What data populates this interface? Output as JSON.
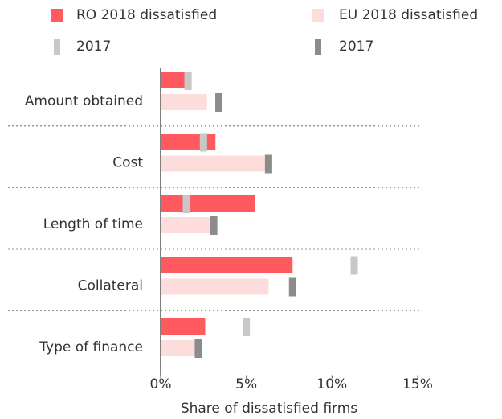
{
  "chart_data": {
    "type": "bar",
    "orientation": "horizontal",
    "x_label": "Share of dissatisfied firms",
    "categories": [
      "Amount obtained",
      "Cost",
      "Length of time",
      "Collateral",
      "Type of finance"
    ],
    "series": [
      {
        "name": "RO 2018 dissatisfied",
        "color": "#ff5a5f",
        "values": [
          1.4,
          3.2,
          5.5,
          7.7,
          2.6
        ]
      },
      {
        "name": "EU 2018 dissatisfied",
        "color": "#fddcdc",
        "values": [
          2.7,
          6.1,
          2.9,
          6.3,
          2.0
        ]
      },
      {
        "name": "2017",
        "color": "#c8c8c8",
        "values": [
          1.6,
          2.5,
          1.5,
          11.3,
          5.0
        ]
      },
      {
        "name": "2017",
        "color": "#8c8c8c",
        "values": [
          3.4,
          6.3,
          3.1,
          7.7,
          2.2
        ]
      }
    ],
    "xlim": [
      0,
      15
    ],
    "xticks": [
      {
        "value": 0,
        "label": "0%"
      },
      {
        "value": 5,
        "label": "5%"
      },
      {
        "value": 10,
        "label": "10%"
      },
      {
        "value": 15,
        "label": "15%"
      }
    ]
  }
}
